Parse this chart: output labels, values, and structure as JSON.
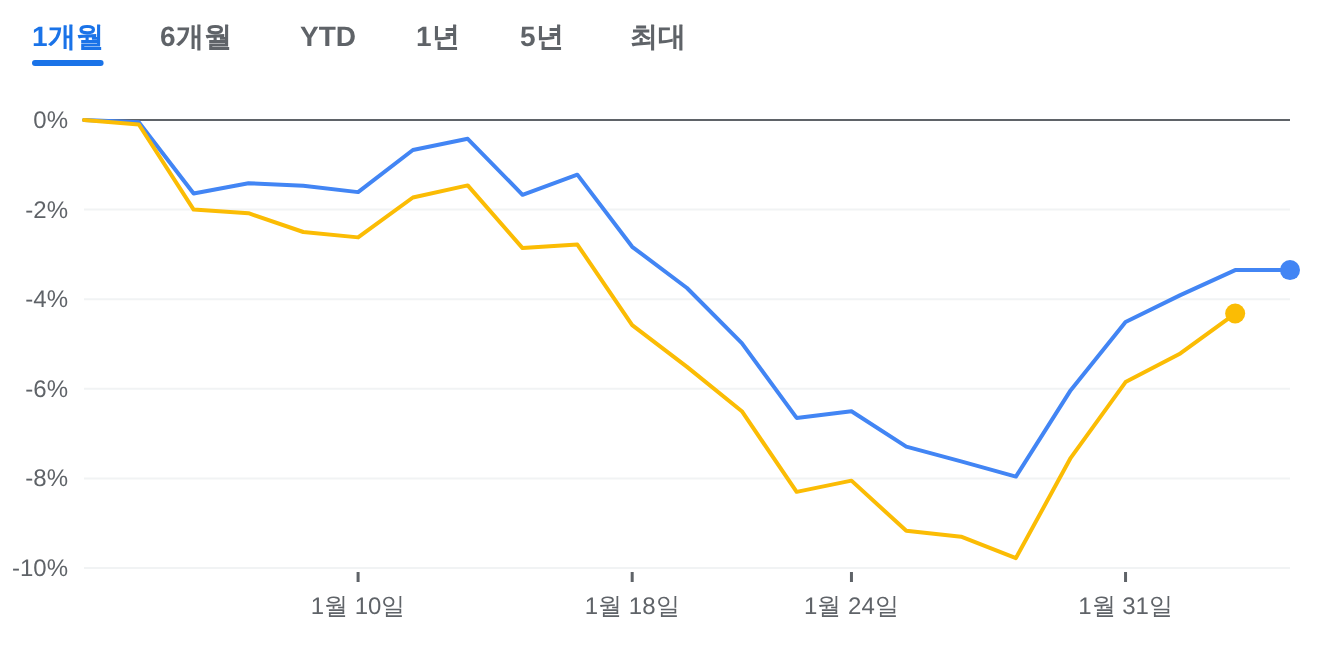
{
  "chart_data": {
    "type": "line",
    "annotations": [
      "1개월",
      "6개월",
      "YTD",
      "1년",
      "5년",
      "최대"
    ],
    "categories": [
      null,
      null,
      null,
      null,
      null,
      "1월 10일",
      null,
      null,
      null,
      null,
      "1월 18일",
      null,
      null,
      null,
      "1월 24일",
      null,
      null,
      null,
      null,
      "1월 31일",
      null,
      null,
      null
    ],
    "series": [
      {
        "color": "#4285f4",
        "values": [
          0,
          -0.05,
          -1.64,
          -1.41,
          -1.47,
          -1.61,
          -0.67,
          -0.42,
          -1.67,
          -1.22,
          -2.83,
          -3.75,
          -4.98,
          -6.65,
          -6.5,
          -7.29,
          -7.62,
          -7.96,
          -6.03,
          -4.51,
          -3.91,
          -3.35,
          -3.35
        ]
      },
      {
        "color": "#fbbc04",
        "values": [
          0,
          -0.1,
          -2.0,
          -2.08,
          -2.5,
          -2.62,
          -1.73,
          -1.46,
          -2.86,
          -2.78,
          -4.58,
          -5.51,
          -6.5,
          -8.3,
          -8.05,
          -9.17,
          -9.3,
          -9.78,
          -7.54,
          -5.85,
          -5.21,
          -4.32,
          null
        ]
      }
    ],
    "ylim": [
      -10,
      0
    ],
    "yticks": [
      {
        "value": 0,
        "label": "0%"
      },
      {
        "value": -2,
        "label": "-2%"
      },
      {
        "value": -4,
        "label": "-4%"
      },
      {
        "value": -6,
        "label": "-6%"
      },
      {
        "value": -8,
        "label": "-8%"
      },
      {
        "value": -10,
        "label": "-10%"
      }
    ],
    "grid": "y",
    "ref_lines": [
      {
        "axis": "y",
        "value": 0,
        "color": "#5f6368"
      }
    ]
  }
}
